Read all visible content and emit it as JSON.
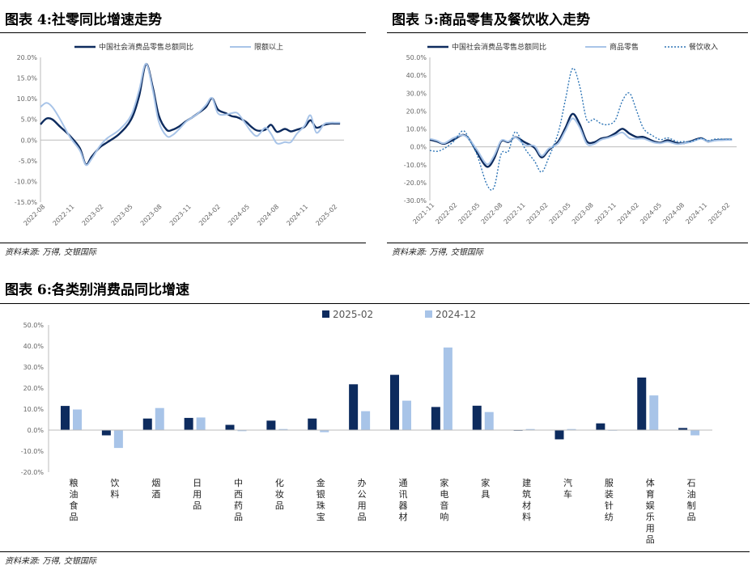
{
  "charts_meta": {
    "source_label": "资料来源: 万得, 交银国际"
  },
  "chart_data": [
    {
      "id": "c1",
      "type": "line",
      "title": "图表 4:社零同比增速走势",
      "ylim": [
        -15,
        20
      ],
      "yticks": [
        "20.0%",
        "15.0%",
        "10.0%",
        "5.0%",
        "0.0%",
        "-5.0%",
        "-10.0%",
        "-15.0%"
      ],
      "xticks": [
        "2022-08",
        "2022-11",
        "2023-02",
        "2023-05",
        "2023-08",
        "2023-11",
        "2024-02",
        "2024-05",
        "2024-08",
        "2024-11",
        "2025-02"
      ],
      "series": [
        {
          "name": "中国社会消费品零售总额同比",
          "color": "#0d2b5e",
          "width": 2.4,
          "dash": "",
          "values": [
            [
              0,
              3.8
            ],
            [
              0.3,
              5.2
            ],
            [
              0.6,
              5.0
            ],
            [
              1,
              3.2
            ],
            [
              1.5,
              1.0
            ],
            [
              2,
              -2.0
            ],
            [
              2.3,
              -5.9
            ],
            [
              2.6,
              -4.0
            ],
            [
              3,
              -1.8
            ],
            [
              3.4,
              -0.5
            ],
            [
              4,
              1.5
            ],
            [
              4.6,
              5.0
            ],
            [
              5,
              10.6
            ],
            [
              5.35,
              18.4
            ],
            [
              5.7,
              12.7
            ],
            [
              6,
              6.0
            ],
            [
              6.4,
              2.5
            ],
            [
              6.7,
              2.5
            ],
            [
              7,
              3.2
            ],
            [
              7.4,
              4.6
            ],
            [
              7.7,
              5.5
            ],
            [
              8,
              6.5
            ],
            [
              8.4,
              8.0
            ],
            [
              8.7,
              10.1
            ],
            [
              9,
              7.4
            ],
            [
              9.4,
              6.5
            ],
            [
              9.7,
              5.8
            ],
            [
              10,
              5.5
            ],
            [
              10.4,
              4.5
            ],
            [
              10.7,
              3.2
            ],
            [
              11,
              2.3
            ],
            [
              11.4,
              2.5
            ],
            [
              11.7,
              3.7
            ],
            [
              12,
              2.0
            ],
            [
              12.4,
              2.7
            ],
            [
              12.7,
              2.1
            ],
            [
              13,
              2.5
            ],
            [
              13.4,
              3.2
            ],
            [
              13.7,
              4.8
            ],
            [
              14,
              3.0
            ],
            [
              14.4,
              3.7
            ],
            [
              14.7,
              4.0
            ],
            [
              15,
              4.0
            ],
            [
              15.2,
              4.0
            ]
          ]
        },
        {
          "name": "限额以上",
          "color": "#a8c4e8",
          "width": 2.0,
          "dash": "",
          "values": [
            [
              0,
              8.0
            ],
            [
              0.3,
              9.0
            ],
            [
              0.6,
              8.0
            ],
            [
              1,
              5.0
            ],
            [
              1.5,
              0.7
            ],
            [
              2,
              -2.5
            ],
            [
              2.3,
              -6.0
            ],
            [
              2.6,
              -4.5
            ],
            [
              3,
              -1.5
            ],
            [
              3.4,
              0.5
            ],
            [
              4,
              2.5
            ],
            [
              4.6,
              6.0
            ],
            [
              5,
              12.0
            ],
            [
              5.35,
              18.5
            ],
            [
              5.7,
              12.0
            ],
            [
              6,
              4.5
            ],
            [
              6.4,
              1.0
            ],
            [
              6.7,
              1.2
            ],
            [
              7,
              2.5
            ],
            [
              7.4,
              4.5
            ],
            [
              7.7,
              5.5
            ],
            [
              8,
              6.5
            ],
            [
              8.4,
              8.5
            ],
            [
              8.7,
              10.2
            ],
            [
              9,
              6.5
            ],
            [
              9.4,
              6.2
            ],
            [
              9.7,
              6.5
            ],
            [
              10,
              6.5
            ],
            [
              10.4,
              4.0
            ],
            [
              10.7,
              2.0
            ],
            [
              11,
              1.0
            ],
            [
              11.4,
              3.0
            ],
            [
              11.7,
              1.5
            ],
            [
              12,
              -0.8
            ],
            [
              12.4,
              -0.5
            ],
            [
              12.7,
              -0.5
            ],
            [
              13,
              1.5
            ],
            [
              13.4,
              3.5
            ],
            [
              13.7,
              6.0
            ],
            [
              14,
              1.8
            ],
            [
              14.4,
              3.9
            ],
            [
              14.7,
              4.2
            ],
            [
              15,
              4.2
            ],
            [
              15.2,
              4.2
            ]
          ]
        }
      ]
    },
    {
      "id": "c2",
      "type": "line",
      "title": "图表 5:商品零售及餐饮收入走势",
      "ylim": [
        -30,
        50
      ],
      "yticks": [
        "50.0%",
        "40.0%",
        "30.0%",
        "20.0%",
        "10.0%",
        "0.0%",
        "-10.0%",
        "-20.0%",
        "-30.0%"
      ],
      "xticks": [
        "2021-11",
        "2022-02",
        "2022-05",
        "2022-08",
        "2022-11",
        "2023-02",
        "2023-05",
        "2023-08",
        "2023-11",
        "2024-02",
        "2024-05",
        "2024-08",
        "2024-11",
        "2025-02"
      ],
      "series": [
        {
          "name": "中国社会消费品零售总额同比",
          "color": "#0d2b5e",
          "width": 2.4,
          "dash": "",
          "values": [
            [
              0,
              4.0
            ],
            [
              0.3,
              3.0
            ],
            [
              0.6,
              1.7
            ],
            [
              1,
              4.0
            ],
            [
              1.4,
              6.7
            ],
            [
              1.7,
              3.5
            ],
            [
              2,
              -3.5
            ],
            [
              2.4,
              -11.1
            ],
            [
              2.7,
              -6.7
            ],
            [
              3,
              3.1
            ],
            [
              3.3,
              2.7
            ],
            [
              3.6,
              5.4
            ],
            [
              4,
              2.5
            ],
            [
              4.4,
              -0.5
            ],
            [
              4.7,
              -5.9
            ],
            [
              5,
              -1.8
            ],
            [
              5.4,
              3.0
            ],
            [
              5.7,
              10.6
            ],
            [
              6,
              18.4
            ],
            [
              6.3,
              12.7
            ],
            [
              6.6,
              3.1
            ],
            [
              6.9,
              2.5
            ],
            [
              7.2,
              4.6
            ],
            [
              7.5,
              5.5
            ],
            [
              7.8,
              7.6
            ],
            [
              8.1,
              10.1
            ],
            [
              8.4,
              7.4
            ],
            [
              8.7,
              5.5
            ],
            [
              9,
              5.5
            ],
            [
              9.4,
              3.1
            ],
            [
              9.7,
              2.3
            ],
            [
              10,
              3.7
            ],
            [
              10.4,
              2.0
            ],
            [
              10.7,
              2.1
            ],
            [
              11,
              3.2
            ],
            [
              11.4,
              4.8
            ],
            [
              11.7,
              3.0
            ],
            [
              12,
              3.7
            ],
            [
              12.4,
              4.0
            ],
            [
              12.7,
              4.0
            ]
          ]
        },
        {
          "name": "商品零售",
          "color": "#a8c4e8",
          "width": 2.0,
          "dash": "",
          "values": [
            [
              0,
              4.5
            ],
            [
              0.3,
              3.5
            ],
            [
              0.6,
              2.0
            ],
            [
              1,
              5.0
            ],
            [
              1.4,
              6.5
            ],
            [
              1.7,
              3.5
            ],
            [
              2,
              -2.0
            ],
            [
              2.4,
              -9.7
            ],
            [
              2.7,
              -5.0
            ],
            [
              3,
              3.5
            ],
            [
              3.3,
              3.0
            ],
            [
              3.6,
              5.3
            ],
            [
              4,
              1.0
            ],
            [
              4.4,
              0.5
            ],
            [
              4.7,
              -5.0
            ],
            [
              5,
              -1.0
            ],
            [
              5.4,
              2.0
            ],
            [
              5.7,
              9.0
            ],
            [
              6,
              15.9
            ],
            [
              6.3,
              10.8
            ],
            [
              6.6,
              1.7
            ],
            [
              6.9,
              1.5
            ],
            [
              7.2,
              4.0
            ],
            [
              7.5,
              5.0
            ],
            [
              7.8,
              6.5
            ],
            [
              8.1,
              8.0
            ],
            [
              8.4,
              4.8
            ],
            [
              8.7,
              4.5
            ],
            [
              9,
              4.5
            ],
            [
              9.4,
              2.5
            ],
            [
              9.7,
              2.0
            ],
            [
              10,
              2.8
            ],
            [
              10.4,
              1.5
            ],
            [
              10.7,
              2.0
            ],
            [
              11,
              2.8
            ],
            [
              11.4,
              4.5
            ],
            [
              11.7,
              3.0
            ],
            [
              12,
              3.5
            ],
            [
              12.4,
              3.8
            ],
            [
              12.7,
              3.8
            ]
          ]
        },
        {
          "name": "餐饮收入",
          "color": "#2e75b6",
          "width": 1.4,
          "dash": "2,2",
          "values": [
            [
              0,
              -2.0
            ],
            [
              0.3,
              -2.5
            ],
            [
              0.6,
              -1.0
            ],
            [
              1,
              3.0
            ],
            [
              1.4,
              9.0
            ],
            [
              1.7,
              3.0
            ],
            [
              2,
              -5.0
            ],
            [
              2.4,
              -21.1
            ],
            [
              2.7,
              -22.7
            ],
            [
              3,
              -4.0
            ],
            [
              3.3,
              -2.5
            ],
            [
              3.6,
              8.4
            ],
            [
              4,
              -1.0
            ],
            [
              4.4,
              -8.0
            ],
            [
              4.7,
              -14.1
            ],
            [
              5,
              -6.0
            ],
            [
              5.4,
              8.0
            ],
            [
              5.7,
              26.3
            ],
            [
              6,
              43.8
            ],
            [
              6.3,
              34.0
            ],
            [
              6.6,
              15.0
            ],
            [
              6.9,
              15.5
            ],
            [
              7.2,
              13.0
            ],
            [
              7.5,
              12.5
            ],
            [
              7.8,
              15.0
            ],
            [
              8.1,
              25.8
            ],
            [
              8.4,
              30.0
            ],
            [
              8.7,
              20.0
            ],
            [
              9,
              10.0
            ],
            [
              9.4,
              6.0
            ],
            [
              9.7,
              4.0
            ],
            [
              10,
              5.0
            ],
            [
              10.4,
              3.0
            ],
            [
              10.7,
              3.0
            ],
            [
              11,
              3.0
            ],
            [
              11.4,
              4.8
            ],
            [
              11.7,
              3.5
            ],
            [
              12,
              4.3
            ],
            [
              12.4,
              4.3
            ],
            [
              12.7,
              4.3
            ]
          ]
        }
      ]
    },
    {
      "id": "c3",
      "type": "bar",
      "title": "图表 6:各类别消费品同比增速",
      "ylim": [
        -20,
        50
      ],
      "yticks": [
        "50.0%",
        "40.0%",
        "30.0%",
        "20.0%",
        "10.0%",
        "0.0%",
        "-10.0%",
        "-20.0%"
      ],
      "categories": [
        "粮油食品",
        "饮料",
        "烟酒",
        "日用品",
        "中西药品",
        "化妆品",
        "金银珠宝",
        "办公用品",
        "通讯器材",
        "家电音响",
        "家具",
        "建筑材料",
        "汽车",
        "服装针纺",
        "体育娱乐用品",
        "石油制品"
      ],
      "series": [
        {
          "name": "2025-02",
          "color": "#0d2b5e",
          "values": [
            11.5,
            -2.5,
            5.5,
            5.8,
            2.5,
            4.5,
            5.5,
            21.8,
            26.3,
            11.0,
            11.6,
            -0.2,
            -4.4,
            3.2,
            25.0,
            1.0
          ]
        },
        {
          "name": "2024-12",
          "color": "#a8c4e8",
          "values": [
            9.8,
            -8.5,
            10.5,
            6.0,
            -0.5,
            0.5,
            -1.0,
            9.0,
            14.0,
            39.3,
            8.6,
            0.5,
            0.5,
            0.0,
            16.5,
            -2.5
          ]
        }
      ]
    }
  ]
}
